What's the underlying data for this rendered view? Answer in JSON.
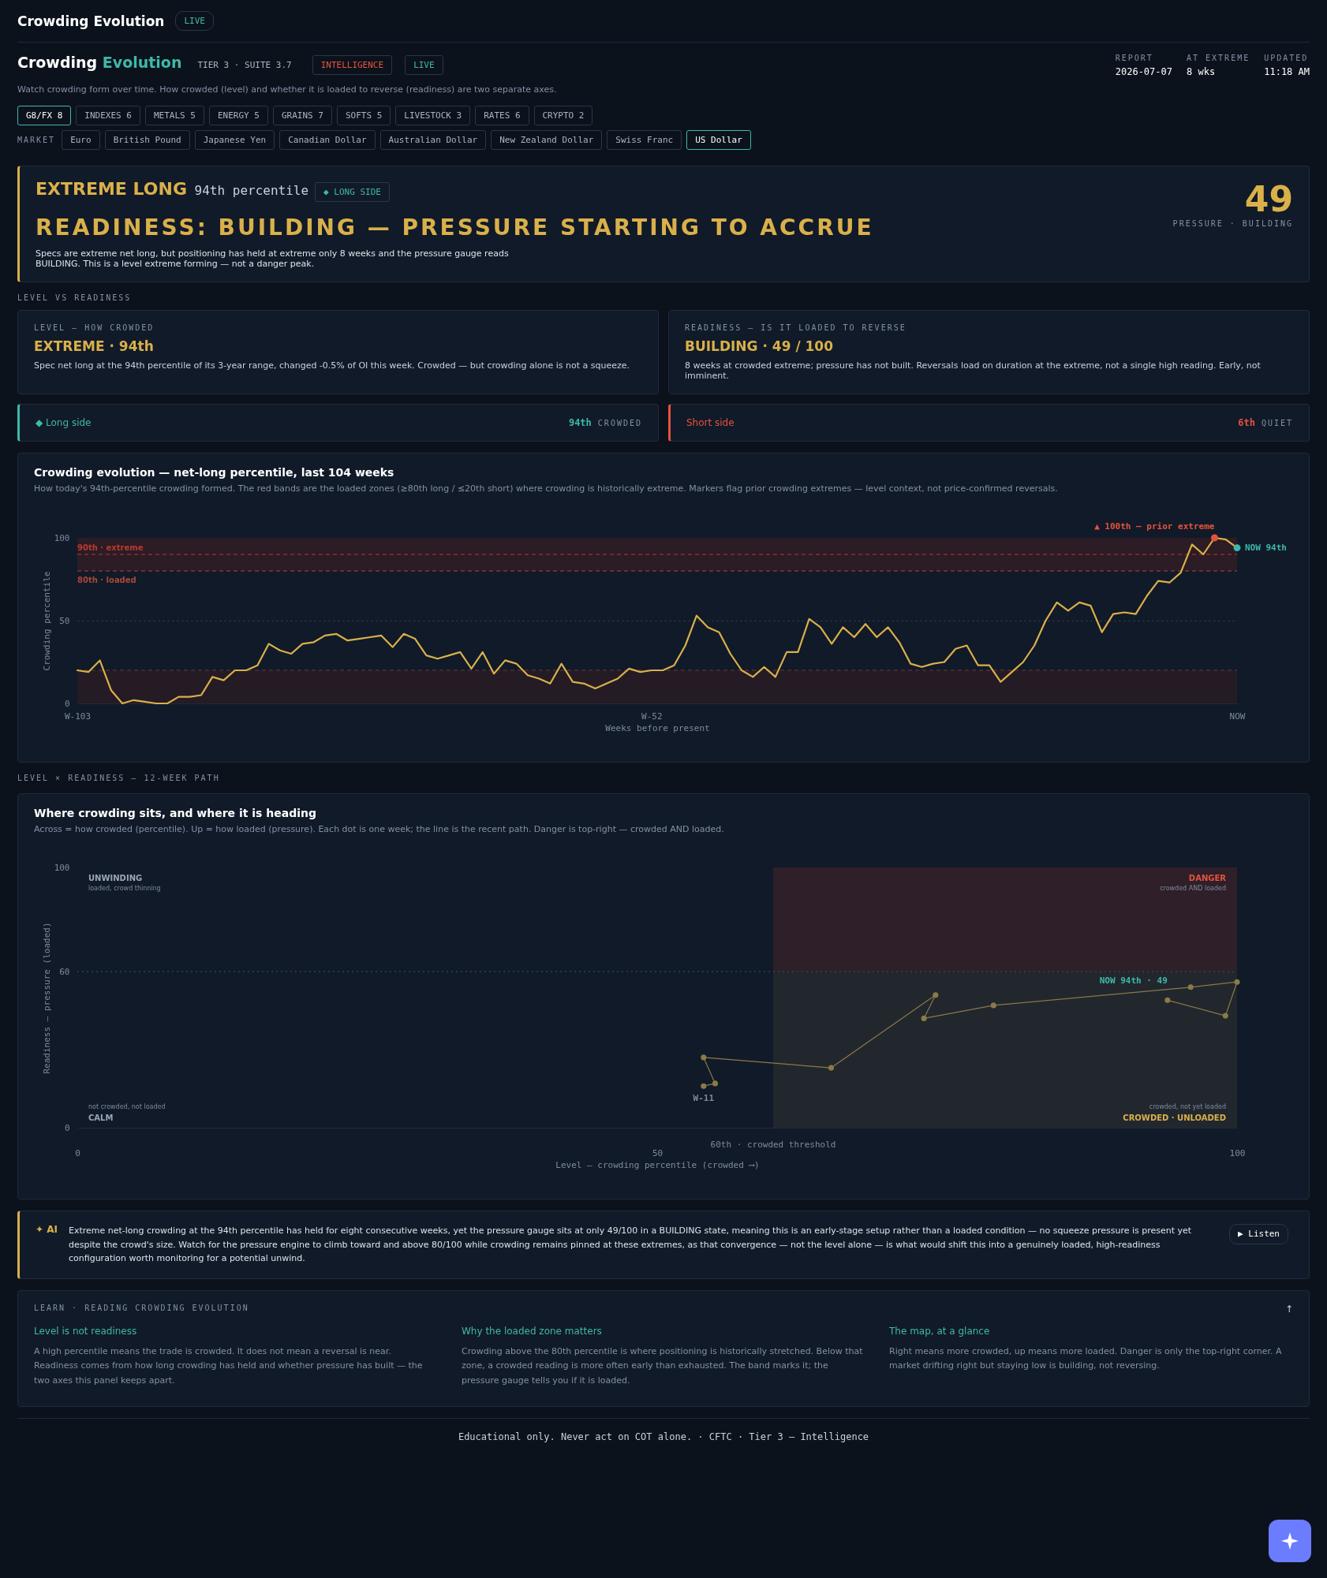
{
  "chart_data": [
    {
      "type": "other",
      "title": "Crowding Evolution",
      "annotations": [
        "LIVE"
      ]
    },
    {
      "type": "other",
      "title": "Crowding Evolution",
      "subtitle": "Watch crowding form over time. How crowded (level) and whether it is loaded to reverse (readiness) are two separate axes.",
      "annotations": [
        "TIER 3 · SUITE 3.7",
        "INTELLIGENCE",
        "LIVE",
        "REPORT",
        "2026-07-07",
        "AT EXTREME",
        "8 wks",
        "UPDATED",
        "11:18 AM"
      ]
    },
    {
      "type": "other",
      "annotations": [
        "G8/FX 8",
        "INDEXES 6",
        "METALS 5",
        "ENERGY 5",
        "GRAINS 7",
        "SOFTS 5",
        "LIVESTOCK 3",
        "RATES 6",
        "CRYPTO 2",
        "MARKET",
        "Euro",
        "British Pound",
        "Japanese Yen",
        "Canadian Dollar",
        "Australian Dollar",
        "New Zealand Dollar",
        "Swiss Franc",
        "US Dollar"
      ]
    },
    {
      "type": "other",
      "title": "EXTREME LONG",
      "subtitle": "94th percentile",
      "annotations": [
        "◆ LONG SIDE",
        "READINESS: BUILDING — PRESSURE STARTING TO ACCRUE",
        "Specs are extreme net long, but positioning has held at extreme only 8 weeks and the pressure gauge reads BUILDING. This is a level extreme forming — not a danger peak.",
        "49",
        "PRESSURE · BUILDING"
      ]
    },
    {
      "type": "other",
      "title": "LEVEL VS READINESS",
      "annotations": [
        "LEVEL — HOW CROWDED",
        "EXTREME · 94th",
        "Spec net long at the 94th percentile of its 3-year range, changed -0.5% of OI this week. Crowded — but crowding alone is not a squeeze.",
        "READINESS — IS IT LOADED TO REVERSE",
        "BUILDING · 49 / 100",
        "8 weeks at crowded extreme; pressure has not built. Reversals load on duration at the extreme, not a single high reading. Early, not imminent.",
        "◆ Long side",
        "94th",
        "CROWDED",
        "Short side",
        "6th",
        "QUIET"
      ]
    },
    {
      "type": "line",
      "title": "Crowding evolution — net-long percentile, last 104 weeks",
      "subtitle": "How today's 94th-percentile crowding formed. The red bands are the loaded zones (≥80th long / ≤20th short) where crowding is historically extreme. Markers flag prior crowding extremes — level context, not price-confirmed reversals.",
      "xlabel": "Weeks before present",
      "ylabel": "Crowding percentile",
      "categories": [
        "W-103",
        null,
        null,
        null,
        null,
        null,
        null,
        null,
        null,
        null,
        null,
        null,
        null,
        null,
        null,
        null,
        null,
        null,
        null,
        null,
        null,
        null,
        null,
        null,
        null,
        null,
        null,
        null,
        null,
        null,
        null,
        null,
        null,
        null,
        null,
        null,
        null,
        null,
        null,
        null,
        null,
        null,
        null,
        null,
        null,
        null,
        null,
        null,
        null,
        null,
        null,
        "W-52",
        null,
        null,
        null,
        null,
        null,
        null,
        null,
        null,
        null,
        null,
        null,
        null,
        null,
        null,
        null,
        null,
        null,
        null,
        null,
        null,
        null,
        null,
        null,
        null,
        null,
        null,
        null,
        null,
        null,
        null,
        null,
        null,
        null,
        null,
        null,
        null,
        null,
        null,
        null,
        null,
        null,
        null,
        null,
        null,
        null,
        null,
        null,
        null,
        null,
        null,
        null,
        "NOW"
      ],
      "series": [
        {
          "type": "line",
          "color": "#d9b04a",
          "values": [
            20,
            19,
            26,
            8,
            0,
            2,
            1,
            0,
            0,
            4,
            4,
            5,
            16,
            14,
            20,
            20,
            23,
            36,
            32,
            30,
            36,
            37,
            41,
            42,
            38,
            39,
            40,
            41,
            34,
            42,
            39,
            29,
            27,
            29,
            31,
            21,
            31,
            18,
            26,
            24,
            17,
            15,
            12,
            24,
            13,
            12,
            9,
            12,
            15,
            21,
            19,
            20,
            20,
            23,
            35,
            53,
            46,
            43,
            30,
            20,
            16,
            22,
            16,
            31,
            31,
            51,
            46,
            36,
            46,
            40,
            48,
            40,
            46,
            37,
            24,
            22,
            24,
            25,
            33,
            35,
            23,
            23,
            13,
            19,
            25,
            35,
            50,
            61,
            56,
            61,
            59,
            43,
            54,
            55,
            54,
            65,
            74,
            73,
            79,
            96,
            90,
            100,
            99,
            94
          ]
        },
        {
          "type": "scatter",
          "color": "#e5533d",
          "values": [
            null,
            null,
            null,
            null,
            null,
            null,
            null,
            null,
            null,
            null,
            null,
            null,
            null,
            null,
            null,
            null,
            null,
            null,
            null,
            null,
            null,
            null,
            null,
            null,
            null,
            null,
            null,
            null,
            null,
            null,
            null,
            null,
            null,
            null,
            null,
            null,
            null,
            null,
            null,
            null,
            null,
            null,
            null,
            null,
            null,
            null,
            null,
            null,
            null,
            null,
            null,
            null,
            null,
            null,
            null,
            null,
            null,
            null,
            null,
            null,
            null,
            null,
            null,
            null,
            null,
            null,
            null,
            null,
            null,
            null,
            null,
            null,
            null,
            null,
            null,
            null,
            null,
            null,
            null,
            null,
            null,
            null,
            null,
            null,
            null,
            null,
            null,
            null,
            null,
            null,
            null,
            null,
            null,
            null,
            null,
            null,
            null,
            null,
            null,
            null,
            null,
            100,
            null,
            null
          ]
        },
        {
          "type": "scatter",
          "color": "#3fb8a9",
          "x": [
            "NOW"
          ],
          "values": [
            94
          ]
        }
      ],
      "ylim": [
        0,
        100
      ],
      "yticks": [
        0,
        50,
        100
      ],
      "grid": "y",
      "bands": [
        {
          "axis": "y",
          "from": 80,
          "to": 100,
          "color": "#2b1c25"
        },
        {
          "axis": "y",
          "from": 0,
          "to": 20,
          "color": "#241b25"
        }
      ],
      "ref_lines": [
        {
          "axis": "y",
          "value": 90,
          "label": "90th · extreme",
          "color": "#b83a2e",
          "line_style": "dashed"
        },
        {
          "axis": "y",
          "value": 80,
          "label": "80th · loaded",
          "color": "#a8483a",
          "line_style": "dashed"
        },
        {
          "axis": "y",
          "value": 20,
          "label": null,
          "color": "#6a3a34",
          "line_style": "dashed"
        }
      ],
      "annotations": [
        {
          "text": "▲ 100th — prior extreme",
          "y": 100
        },
        {
          "text": "NOW 94th",
          "x": "NOW",
          "y": 94
        }
      ]
    },
    {
      "type": "other",
      "title": "LEVEL × READINESS — 12-WEEK PATH"
    },
    {
      "type": "line",
      "title": "Where crowding sits, and where it is heading",
      "subtitle": "Across = how crowded (percentile). Up = how loaded (pressure). Each dot is one week; the line is the recent path. Danger is top-right — crowded AND loaded.",
      "xlabel": "Level — crowding percentile (crowded ⟶)",
      "ylabel": "Readiness — pressure (loaded)",
      "marker": "circle",
      "series": [
        {
          "type": "line",
          "color": "#8a7a45",
          "x": [
            54,
            55,
            54,
            65,
            74,
            73,
            79,
            96,
            100,
            99,
            94
          ],
          "values": [
            16,
            17,
            27,
            23,
            51,
            42,
            47,
            54,
            56,
            43,
            49
          ]
        }
      ],
      "xlim": [
        0,
        100
      ],
      "xticks": [
        0,
        50,
        100
      ],
      "ylim": [
        0,
        100
      ],
      "yticks": [
        0,
        60,
        100
      ],
      "bands": [
        {
          "axis": "x",
          "from": 60,
          "to": 100,
          "label": "60th · crowded threshold",
          "color": "#22272e"
        },
        {
          "axis": "y",
          "from": 60,
          "to": 100,
          "color": "#2e1f29"
        }
      ],
      "ref_lines": [
        {
          "axis": "y",
          "value": 60,
          "label": null,
          "color": "#2f5f5a",
          "line_style": "dotted"
        }
      ],
      "annotations": [
        "UNWINDING",
        "loaded, crowd thinning",
        "DANGER",
        "crowded AND loaded",
        "not crowded, not loaded",
        "CALM",
        "crowded, not yet loaded",
        "CROWDED · UNLOADED",
        {
          "text": "W-11",
          "x": 54,
          "y": 16
        },
        {
          "text": "NOW 94th · 49",
          "x": 94,
          "y": 49
        }
      ]
    },
    {
      "type": "other",
      "annotations": [
        "✦ AI",
        "Extreme net-long crowding at the 94th percentile has held for eight consecutive weeks, yet the pressure gauge sits at only 49/100 in a BUILDING state, meaning this is an early-stage setup rather than a loaded condition — no squeeze pressure is present yet despite the crowd's size. Watch for the pressure engine to climb toward and above 80/100 while crowding remains pinned at these extremes, as that convergence — not the level alone — is what would shift this into a genuinely loaded, high-readiness configuration worth monitoring for a potential unwind.",
        "▶ Listen"
      ]
    },
    {
      "type": "other",
      "title": "LEARN · READING CROWDING EVOLUTION",
      "annotations": [
        "↑",
        "Level is not readiness",
        "A high percentile means the trade is crowded. It does not mean a reversal is near. Readiness comes from how long crowding has held and whether pressure has built — the two axes this panel keeps apart.",
        "Why the loaded zone matters",
        "Crowding above the 80th percentile is where positioning is historically stretched. Below that zone, a crowded reading is more often early than exhausted. The band marks it; the pressure gauge tells you if it is loaded.",
        "The map, at a glance",
        "Right means more crowded, up means more loaded. Danger is only the top-right corner. A market drifting right but staying low is building, not reversing."
      ]
    },
    {
      "type": "other",
      "annotations": [
        "Educational only. Never act on COT alone. · CFTC · Tier 3 — Intelligence"
      ]
    }
  ]
}
